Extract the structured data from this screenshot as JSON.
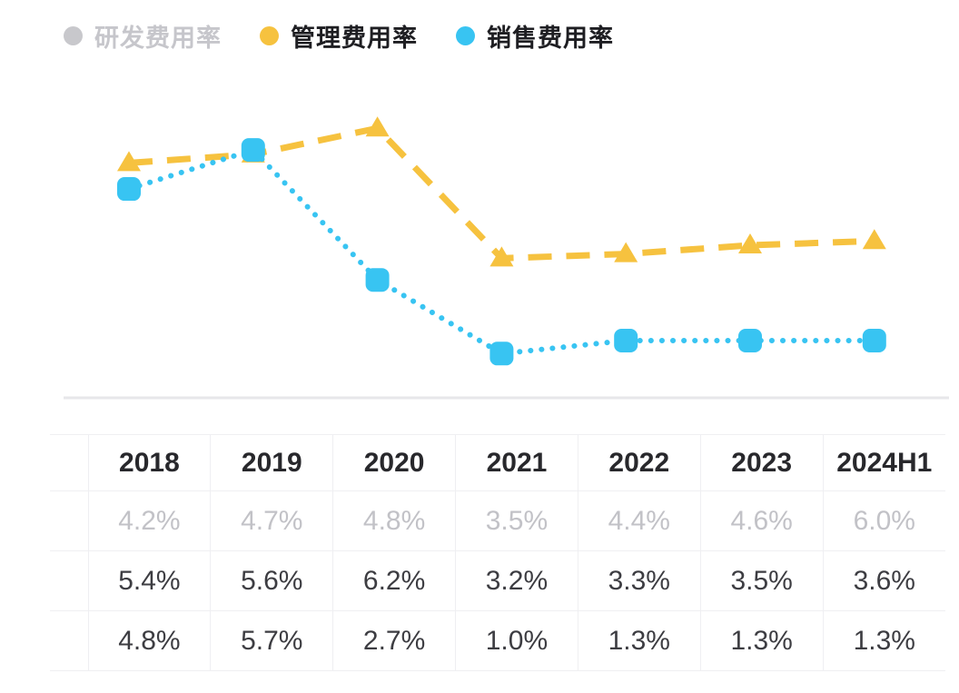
{
  "legend": {
    "items": [
      {
        "label": "研发费用率",
        "dot_color": "#c8c8cc",
        "state": "disabled"
      },
      {
        "label": "管理费用率",
        "dot_color": "#f6c23f",
        "state": "active"
      },
      {
        "label": "销售费用率",
        "dot_color": "#38c4f2",
        "state": "active"
      }
    ]
  },
  "chart_data": {
    "type": "line",
    "categories": [
      "2018",
      "2019",
      "2020",
      "2021",
      "2022",
      "2023",
      "2024H1"
    ],
    "series": [
      {
        "name": "研发费用率",
        "values": [
          4.2,
          4.7,
          4.8,
          3.5,
          4.4,
          4.6,
          6.0
        ],
        "color": "#4468e4",
        "visible": false,
        "marker": "circle",
        "line_style": "solid"
      },
      {
        "name": "管理费用率",
        "values": [
          5.4,
          5.6,
          6.2,
          3.2,
          3.3,
          3.5,
          3.6
        ],
        "color": "#f6c23f",
        "visible": true,
        "marker": "triangle",
        "line_style": "dashed"
      },
      {
        "name": "销售费用率",
        "values": [
          4.8,
          5.7,
          2.7,
          1.0,
          1.3,
          1.3,
          1.3
        ],
        "color": "#38c4f2",
        "visible": true,
        "marker": "square",
        "line_style": "dotted"
      }
    ],
    "unit": "%",
    "ylim": [
      0,
      7
    ],
    "grid": false,
    "legend_position": "top-left",
    "baseline_color": "#e7e7ea"
  },
  "table": {
    "columns": [
      "2018",
      "2019",
      "2020",
      "2021",
      "2022",
      "2023",
      "2024H1"
    ],
    "rows": [
      {
        "series": "研发费用率",
        "dot_color": "#4468e4",
        "muted": true,
        "values": [
          "4.2%",
          "4.7%",
          "4.8%",
          "3.5%",
          "4.4%",
          "4.6%",
          "6.0%"
        ]
      },
      {
        "series": "管理费用率",
        "dot_color": "#f6c23f",
        "muted": false,
        "values": [
          "5.4%",
          "5.6%",
          "6.2%",
          "3.2%",
          "3.3%",
          "3.5%",
          "3.6%"
        ]
      },
      {
        "series": "销售费用率",
        "dot_color": "#38c4f2",
        "muted": false,
        "values": [
          "4.8%",
          "5.7%",
          "2.7%",
          "1.0%",
          "1.3%",
          "1.3%",
          "1.3%"
        ]
      }
    ]
  }
}
